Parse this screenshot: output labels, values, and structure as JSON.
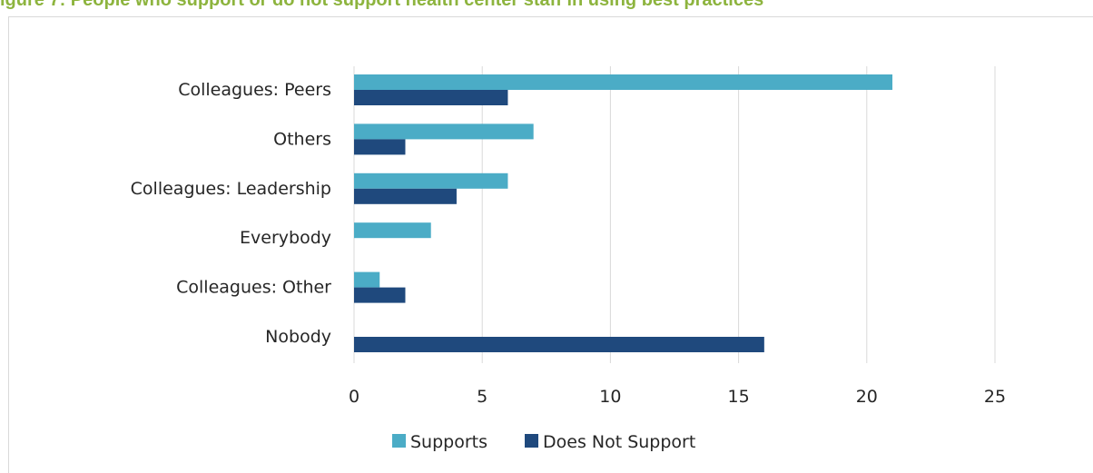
{
  "chart_title": "igure 7: People who support or do not support health center staff in using best practices",
  "colors": {
    "supports": "#4bacc6",
    "does_not_support": "#1f497d",
    "grid": "#d9d9d9",
    "title": "#8db43e"
  },
  "chart_data": {
    "type": "bar",
    "orientation": "horizontal",
    "categories": [
      "Colleagues: Peers",
      "Others",
      "Colleagues: Leadership",
      "Everybody",
      "Colleagues: Other",
      "Nobody"
    ],
    "series": [
      {
        "name": "Supports",
        "values": [
          21,
          7,
          6,
          3,
          1,
          0
        ]
      },
      {
        "name": "Does Not Support",
        "values": [
          6,
          2,
          4,
          0,
          2,
          16
        ]
      }
    ],
    "xlim": [
      0,
      25
    ],
    "xticks": [
      0,
      5,
      10,
      15,
      20,
      25
    ],
    "grid": true,
    "legend_position": "bottom"
  }
}
